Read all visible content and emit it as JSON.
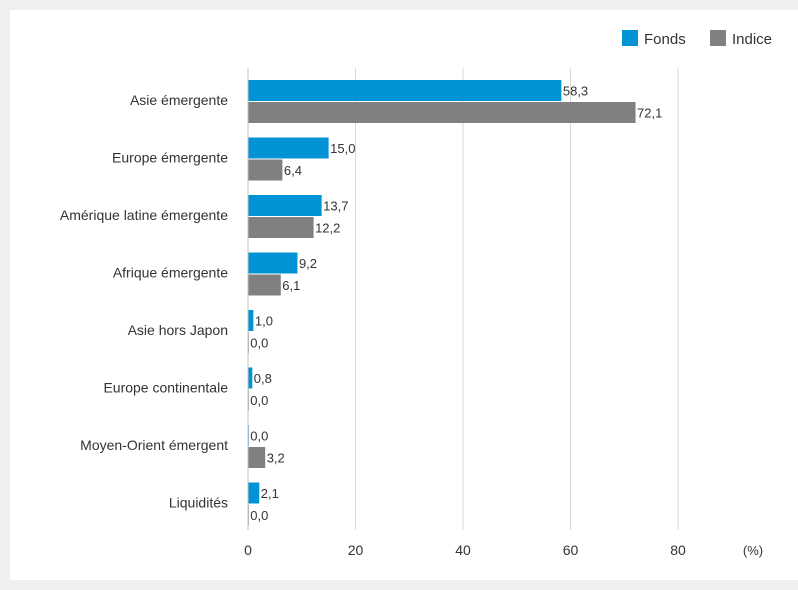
{
  "chart_data": {
    "type": "bar",
    "orientation": "horizontal",
    "categories": [
      "Asie émergente",
      "Europe émergente",
      "Amérique latine émergente",
      "Afrique émergente",
      "Asie hors Japon",
      "Europe continentale",
      "Moyen-Orient émergent",
      "Liquidités"
    ],
    "series": [
      {
        "name": "Fonds",
        "color": "#0094d6",
        "values": [
          58.3,
          15.0,
          13.7,
          9.2,
          1.0,
          0.8,
          0.0,
          2.1
        ],
        "labels": [
          "58,3",
          "15,0",
          "13,7",
          "9,2",
          "1,0",
          "0,8",
          "0,0",
          "2,1"
        ]
      },
      {
        "name": "Indice",
        "color": "#808080",
        "values": [
          72.1,
          6.4,
          12.2,
          6.1,
          0.0,
          0.0,
          3.2,
          0.0
        ],
        "labels": [
          "72,1",
          "6,4",
          "12,2",
          "6,1",
          "0,0",
          "0,0",
          "3,2",
          "0,0"
        ]
      }
    ],
    "xlim": [
      0,
      80
    ],
    "xticks": [
      0,
      20,
      40,
      60,
      80
    ],
    "xtick_labels": [
      "0",
      "20",
      "40",
      "60",
      "80"
    ],
    "unit_label": "(%)",
    "grid": true,
    "legend_position": "top-right"
  }
}
